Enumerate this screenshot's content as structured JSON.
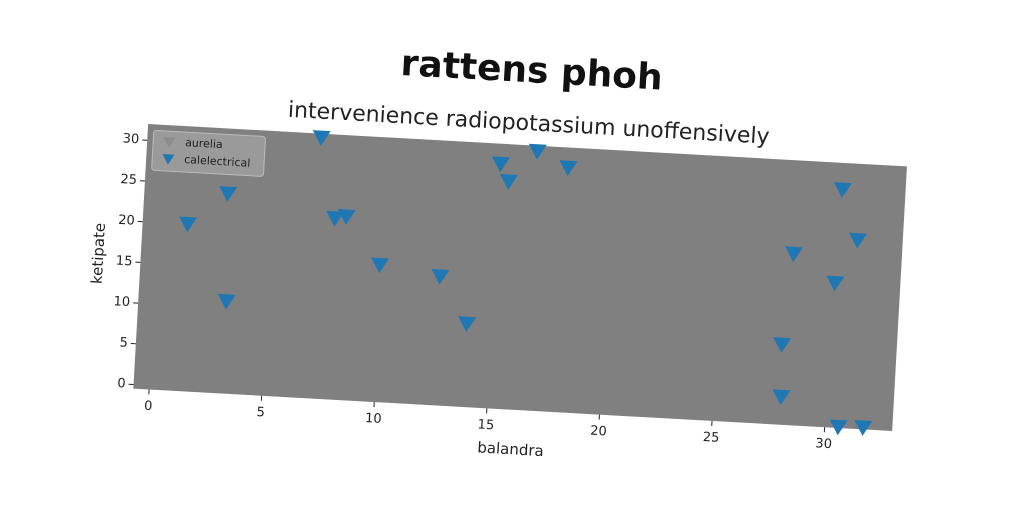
{
  "chart_data": {
    "type": "scatter",
    "title": "rattens phoh",
    "subtitle": "intervenience radiopotassium unoffensively",
    "x_label": "balandra",
    "y_label": "ketipate",
    "xlim": [
      -0.7,
      33
    ],
    "ylim": [
      -0.5,
      32
    ],
    "xticks": [
      0,
      5,
      10,
      15,
      20,
      25,
      30
    ],
    "yticks": [
      0,
      5,
      10,
      15,
      20,
      25,
      30
    ],
    "legend": "upper left",
    "series": [
      {
        "name": "aurelia",
        "color": "#8c8c8c",
        "x": [],
        "values": []
      },
      {
        "name": "calelectrical",
        "color": "#1f77b4",
        "x": [
          1.3,
          3.0,
          3.2,
          7.0,
          7.8,
          8.3,
          9.9,
          12.6,
          13.9,
          15.0,
          15.4,
          16.6,
          18.0,
          27.9,
          28.0,
          28.2,
          30.1,
          30.2,
          31.0,
          30.6,
          31.7
        ],
        "values": [
          20,
          24,
          10.8,
          31.5,
          21.7,
          22,
          16.3,
          15.3,
          9.7,
          29.5,
          27.4,
          31.3,
          29.5,
          9.3,
          2.9,
          20.5,
          17.2,
          28.7,
          22.6,
          -0.4,
          -0.3
        ]
      }
    ]
  }
}
